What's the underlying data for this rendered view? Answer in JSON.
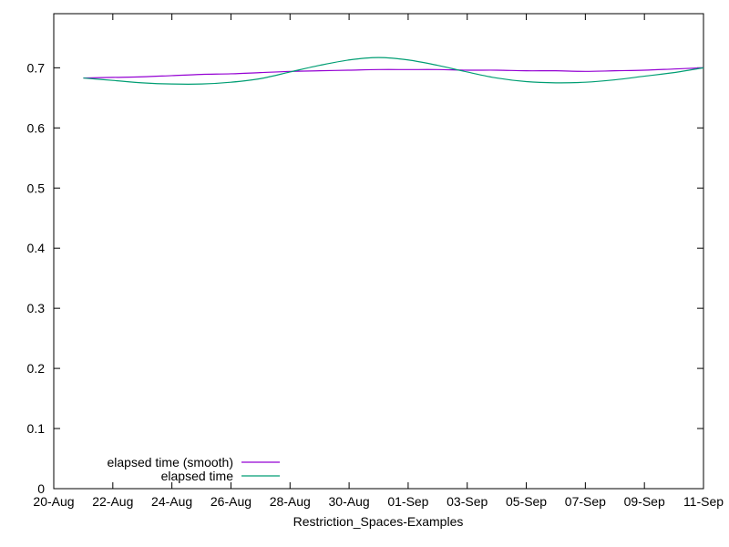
{
  "chart_data": {
    "type": "line",
    "title": "",
    "xlabel": "Restriction_Spaces-Examples",
    "ylabel": "",
    "x_tick_labels": [
      "20-Aug",
      "22-Aug",
      "24-Aug",
      "26-Aug",
      "28-Aug",
      "30-Aug",
      "01-Sep",
      "03-Sep",
      "05-Sep",
      "07-Sep",
      "09-Sep",
      "11-Sep"
    ],
    "y_tick_labels": [
      "0",
      "0.1",
      "0.2",
      "0.3",
      "0.4",
      "0.5",
      "0.6",
      "0.7"
    ],
    "y_ticks": [
      0,
      0.1,
      0.2,
      0.3,
      0.4,
      0.5,
      0.6,
      0.7
    ],
    "ylim": [
      0,
      0.79
    ],
    "grid": false,
    "legend_position": "bottom-left",
    "series": [
      {
        "name": "elapsed time (smooth)",
        "color": "#9400d3",
        "x": [
          "21-Aug",
          "22-Aug",
          "23-Aug",
          "24-Aug",
          "25-Aug",
          "26-Aug",
          "27-Aug",
          "28-Aug",
          "29-Aug",
          "30-Aug",
          "31-Aug",
          "01-Sep",
          "02-Sep",
          "03-Sep",
          "04-Sep",
          "05-Sep",
          "06-Sep",
          "07-Sep",
          "08-Sep",
          "09-Sep",
          "10-Sep",
          "11-Sep"
        ],
        "y": [
          0.683,
          0.684,
          0.685,
          0.687,
          0.689,
          0.69,
          0.692,
          0.694,
          0.695,
          0.696,
          0.697,
          0.697,
          0.697,
          0.696,
          0.696,
          0.695,
          0.695,
          0.694,
          0.695,
          0.696,
          0.698,
          0.7
        ]
      },
      {
        "name": "elapsed time",
        "color": "#009e73",
        "x": [
          "21-Aug",
          "22-Aug",
          "23-Aug",
          "24-Aug",
          "25-Aug",
          "26-Aug",
          "27-Aug",
          "28-Aug",
          "29-Aug",
          "30-Aug",
          "31-Aug",
          "01-Sep",
          "02-Sep",
          "03-Sep",
          "04-Sep",
          "05-Sep",
          "06-Sep",
          "07-Sep",
          "08-Sep",
          "09-Sep",
          "10-Sep",
          "11-Sep"
        ],
        "y": [
          0.683,
          0.679,
          0.675,
          0.673,
          0.673,
          0.676,
          0.682,
          0.693,
          0.704,
          0.713,
          0.717,
          0.713,
          0.704,
          0.693,
          0.683,
          0.677,
          0.675,
          0.676,
          0.68,
          0.686,
          0.692,
          0.7
        ]
      }
    ]
  }
}
